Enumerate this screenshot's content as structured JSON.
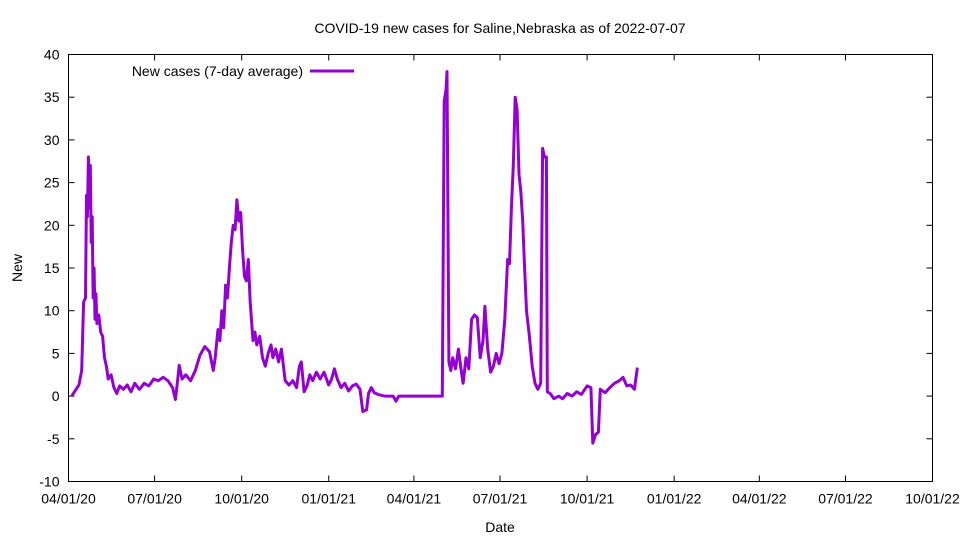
{
  "colors": {
    "series": "#9400d3",
    "axis": "#000000",
    "background": "#ffffff"
  },
  "chart_data": {
    "type": "line",
    "title": "COVID-19 new cases for Saline,Nebraska as of 2022-07-07",
    "xlabel": "Date",
    "ylabel": "New",
    "xlim": [
      "2020-04-01",
      "2022-10-01"
    ],
    "ylim": [
      -10,
      40
    ],
    "grid": false,
    "legend_position": "top-left",
    "x_ticks": [
      {
        "date": "2020-04-01",
        "label": "04/01/20"
      },
      {
        "date": "2020-07-01",
        "label": "07/01/20"
      },
      {
        "date": "2020-10-01",
        "label": "10/01/20"
      },
      {
        "date": "2021-01-01",
        "label": "01/01/21"
      },
      {
        "date": "2021-04-01",
        "label": "04/01/21"
      },
      {
        "date": "2021-07-01",
        "label": "07/01/21"
      },
      {
        "date": "2021-10-01",
        "label": "10/01/21"
      },
      {
        "date": "2022-01-01",
        "label": "01/01/22"
      },
      {
        "date": "2022-04-01",
        "label": "04/01/22"
      },
      {
        "date": "2022-07-01",
        "label": "07/01/22"
      },
      {
        "date": "2022-10-01",
        "label": "10/01/22"
      }
    ],
    "y_ticks": [
      -10,
      -5,
      0,
      5,
      10,
      15,
      20,
      25,
      30,
      35,
      40
    ],
    "series": [
      {
        "name": "New cases (7-day average)",
        "points": [
          [
            "2020-04-05",
            0.1
          ],
          [
            "2020-04-09",
            0.8
          ],
          [
            "2020-04-12",
            1.3
          ],
          [
            "2020-04-15",
            3.0
          ],
          [
            "2020-04-17",
            11.0
          ],
          [
            "2020-04-19",
            11.5
          ],
          [
            "2020-04-20",
            23.5
          ],
          [
            "2020-04-21",
            21.0
          ],
          [
            "2020-04-22",
            28.0
          ],
          [
            "2020-04-23",
            22.0
          ],
          [
            "2020-04-24",
            27.0
          ],
          [
            "2020-04-25",
            18.0
          ],
          [
            "2020-04-26",
            21.0
          ],
          [
            "2020-04-27",
            11.5
          ],
          [
            "2020-04-28",
            15.0
          ],
          [
            "2020-04-29",
            9.0
          ],
          [
            "2020-04-30",
            12.0
          ],
          [
            "2020-05-01",
            8.5
          ],
          [
            "2020-05-03",
            9.5
          ],
          [
            "2020-05-05",
            7.5
          ],
          [
            "2020-05-07",
            7.0
          ],
          [
            "2020-05-09",
            4.5
          ],
          [
            "2020-05-11",
            3.5
          ],
          [
            "2020-05-13",
            2.0
          ],
          [
            "2020-05-16",
            2.5
          ],
          [
            "2020-05-19",
            1.0
          ],
          [
            "2020-05-22",
            0.3
          ],
          [
            "2020-05-25",
            1.2
          ],
          [
            "2020-05-29",
            0.8
          ],
          [
            "2020-06-02",
            1.3
          ],
          [
            "2020-06-06",
            0.5
          ],
          [
            "2020-06-10",
            1.5
          ],
          [
            "2020-06-15",
            0.8
          ],
          [
            "2020-06-20",
            1.5
          ],
          [
            "2020-06-25",
            1.2
          ],
          [
            "2020-06-30",
            2.0
          ],
          [
            "2020-07-05",
            1.8
          ],
          [
            "2020-07-10",
            2.2
          ],
          [
            "2020-07-15",
            1.8
          ],
          [
            "2020-07-20",
            1.0
          ],
          [
            "2020-07-23",
            -0.4
          ],
          [
            "2020-07-25",
            1.5
          ],
          [
            "2020-07-27",
            3.6
          ],
          [
            "2020-07-30",
            2.0
          ],
          [
            "2020-08-03",
            2.5
          ],
          [
            "2020-08-08",
            1.8
          ],
          [
            "2020-08-13",
            3.0
          ],
          [
            "2020-08-18",
            4.8
          ],
          [
            "2020-08-23",
            5.8
          ],
          [
            "2020-08-28",
            5.2
          ],
          [
            "2020-09-01",
            3.0
          ],
          [
            "2020-09-03",
            4.5
          ],
          [
            "2020-09-06",
            7.8
          ],
          [
            "2020-09-08",
            6.5
          ],
          [
            "2020-09-10",
            10.0
          ],
          [
            "2020-09-12",
            8.0
          ],
          [
            "2020-09-14",
            13.0
          ],
          [
            "2020-09-16",
            11.5
          ],
          [
            "2020-09-18",
            15.0
          ],
          [
            "2020-09-20",
            18.0
          ],
          [
            "2020-09-22",
            20.0
          ],
          [
            "2020-09-24",
            19.5
          ],
          [
            "2020-09-26",
            23.0
          ],
          [
            "2020-09-28",
            20.5
          ],
          [
            "2020-09-30",
            21.5
          ],
          [
            "2020-10-02",
            17.0
          ],
          [
            "2020-10-04",
            14.0
          ],
          [
            "2020-10-06",
            13.5
          ],
          [
            "2020-10-08",
            16.0
          ],
          [
            "2020-10-10",
            11.0
          ],
          [
            "2020-10-13",
            6.5
          ],
          [
            "2020-10-15",
            7.5
          ],
          [
            "2020-10-17",
            6.0
          ],
          [
            "2020-10-20",
            7.0
          ],
          [
            "2020-10-23",
            4.5
          ],
          [
            "2020-10-26",
            3.5
          ],
          [
            "2020-10-29",
            5.0
          ],
          [
            "2020-11-01",
            6.0
          ],
          [
            "2020-11-03",
            4.5
          ],
          [
            "2020-11-06",
            5.5
          ],
          [
            "2020-11-09",
            4.0
          ],
          [
            "2020-11-12",
            5.5
          ],
          [
            "2020-11-16",
            1.8
          ],
          [
            "2020-11-20",
            1.3
          ],
          [
            "2020-11-24",
            1.8
          ],
          [
            "2020-11-28",
            1.0
          ],
          [
            "2020-12-01",
            3.5
          ],
          [
            "2020-12-03",
            4.0
          ],
          [
            "2020-12-06",
            0.5
          ],
          [
            "2020-12-09",
            1.2
          ],
          [
            "2020-12-12",
            2.5
          ],
          [
            "2020-12-15",
            1.8
          ],
          [
            "2020-12-19",
            2.8
          ],
          [
            "2020-12-23",
            2.0
          ],
          [
            "2020-12-27",
            2.8
          ],
          [
            "2021-01-01",
            1.3
          ],
          [
            "2021-01-04",
            2.0
          ],
          [
            "2021-01-07",
            3.2
          ],
          [
            "2021-01-10",
            2.0
          ],
          [
            "2021-01-14",
            1.0
          ],
          [
            "2021-01-18",
            1.5
          ],
          [
            "2021-01-22",
            0.6
          ],
          [
            "2021-01-26",
            1.2
          ],
          [
            "2021-01-30",
            1.4
          ],
          [
            "2021-02-03",
            0.8
          ],
          [
            "2021-02-06",
            -1.8
          ],
          [
            "2021-02-10",
            -1.6
          ],
          [
            "2021-02-12",
            0.3
          ],
          [
            "2021-02-15",
            1.0
          ],
          [
            "2021-02-18",
            0.4
          ],
          [
            "2021-02-22",
            0.2
          ],
          [
            "2021-03-01",
            0.0
          ],
          [
            "2021-03-10",
            0.0
          ],
          [
            "2021-03-13",
            -0.6
          ],
          [
            "2021-03-16",
            0.0
          ],
          [
            "2021-03-25",
            0.0
          ],
          [
            "2021-04-05",
            0.0
          ],
          [
            "2021-04-15",
            0.0
          ],
          [
            "2021-04-25",
            0.0
          ],
          [
            "2021-05-01",
            0.0
          ],
          [
            "2021-05-03",
            34.5
          ],
          [
            "2021-05-05",
            36.0
          ],
          [
            "2021-05-06",
            38.0
          ],
          [
            "2021-05-08",
            4.0
          ],
          [
            "2021-05-10",
            3.0
          ],
          [
            "2021-05-12",
            4.5
          ],
          [
            "2021-05-15",
            3.2
          ],
          [
            "2021-05-18",
            5.5
          ],
          [
            "2021-05-21",
            3.0
          ],
          [
            "2021-05-23",
            1.5
          ],
          [
            "2021-05-26",
            4.5
          ],
          [
            "2021-05-29",
            3.2
          ],
          [
            "2021-06-01",
            9.0
          ],
          [
            "2021-06-04",
            9.5
          ],
          [
            "2021-06-07",
            9.2
          ],
          [
            "2021-06-10",
            4.5
          ],
          [
            "2021-06-13",
            6.5
          ],
          [
            "2021-06-15",
            10.5
          ],
          [
            "2021-06-18",
            5.5
          ],
          [
            "2021-06-21",
            2.8
          ],
          [
            "2021-06-24",
            3.5
          ],
          [
            "2021-06-27",
            5.0
          ],
          [
            "2021-06-30",
            3.8
          ],
          [
            "2021-07-03",
            5.0
          ],
          [
            "2021-07-06",
            9.0
          ],
          [
            "2021-07-09",
            16.0
          ],
          [
            "2021-07-11",
            15.5
          ],
          [
            "2021-07-13",
            22.0
          ],
          [
            "2021-07-15",
            27.0
          ],
          [
            "2021-07-17",
            35.0
          ],
          [
            "2021-07-19",
            33.5
          ],
          [
            "2021-07-21",
            26.0
          ],
          [
            "2021-07-23",
            24.0
          ],
          [
            "2021-07-25",
            20.5
          ],
          [
            "2021-07-27",
            15.0
          ],
          [
            "2021-07-29",
            10.0
          ],
          [
            "2021-08-01",
            7.0
          ],
          [
            "2021-08-04",
            3.5
          ],
          [
            "2021-08-07",
            1.5
          ],
          [
            "2021-08-10",
            0.8
          ],
          [
            "2021-08-13",
            1.5
          ],
          [
            "2021-08-15",
            29.0
          ],
          [
            "2021-08-17",
            28.0
          ],
          [
            "2021-08-19",
            28.0
          ],
          [
            "2021-08-20",
            0.5
          ],
          [
            "2021-08-23",
            0.3
          ],
          [
            "2021-08-27",
            -0.3
          ],
          [
            "2021-09-01",
            0.0
          ],
          [
            "2021-09-05",
            -0.3
          ],
          [
            "2021-09-10",
            0.3
          ],
          [
            "2021-09-15",
            0.0
          ],
          [
            "2021-09-20",
            0.5
          ],
          [
            "2021-09-25",
            0.2
          ],
          [
            "2021-10-01",
            1.2
          ],
          [
            "2021-10-05",
            1.0
          ],
          [
            "2021-10-07",
            -5.5
          ],
          [
            "2021-10-10",
            -4.5
          ],
          [
            "2021-10-13",
            -4.2
          ],
          [
            "2021-10-15",
            0.8
          ],
          [
            "2021-10-20",
            0.4
          ],
          [
            "2021-10-25",
            1.0
          ],
          [
            "2021-10-30",
            1.5
          ],
          [
            "2021-11-04",
            1.8
          ],
          [
            "2021-11-08",
            2.2
          ],
          [
            "2021-11-12",
            1.2
          ],
          [
            "2021-11-16",
            1.3
          ],
          [
            "2021-11-20",
            0.8
          ],
          [
            "2021-11-23",
            3.2
          ]
        ]
      }
    ]
  }
}
